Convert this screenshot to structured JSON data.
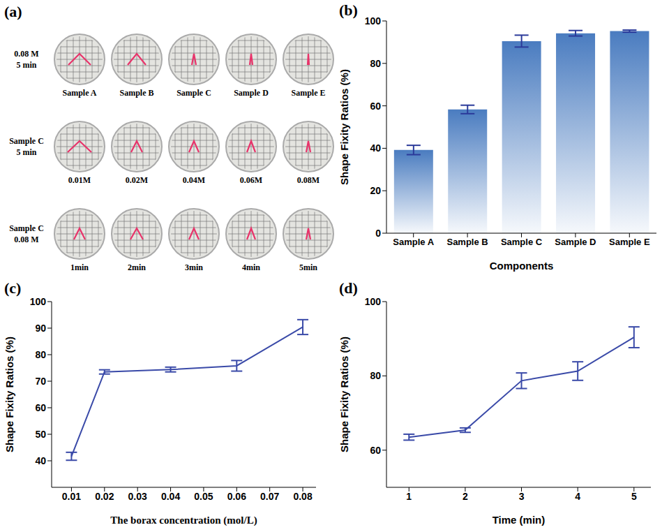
{
  "chart_data": [
    {
      "type": "photo_grid",
      "panel": "(a)",
      "rows": [
        {
          "label": [
            "0.08 M",
            "5 min"
          ],
          "items": [
            "Sample A",
            "Sample B",
            "Sample C",
            "Sample D",
            "Sample E"
          ]
        },
        {
          "label": [
            "Sample C",
            "5 min"
          ],
          "items": [
            "0.01M",
            "0.02M",
            "0.04M",
            "0.06M",
            "0.08M"
          ]
        },
        {
          "label": [
            "Sample C",
            "0.08 M"
          ],
          "items": [
            "1min",
            "2min",
            "3min",
            "4min",
            "5min"
          ]
        }
      ]
    },
    {
      "type": "bar",
      "panel": "(b)",
      "categories": [
        "Sample A",
        "Sample B",
        "Sample C",
        "Sample D",
        "Sample E"
      ],
      "values": [
        39.2,
        58.3,
        90.5,
        94.2,
        95.2
      ],
      "errors": [
        2.2,
        2.0,
        2.8,
        1.3,
        0.5
      ],
      "color": "#4a7cc0",
      "xlabel": "Components",
      "ylabel": "Shape Fixity Ratios (%)",
      "ylim": [
        0,
        100
      ],
      "yticks": [
        0,
        20,
        40,
        60,
        80,
        100
      ]
    },
    {
      "type": "line",
      "panel": "(c)",
      "x": [
        0.01,
        0.02,
        0.04,
        0.06,
        0.08
      ],
      "values": [
        41.7,
        73.5,
        74.4,
        75.8,
        90.4
      ],
      "errors": [
        1.5,
        0.8,
        0.9,
        2.0,
        2.8
      ],
      "color": "#3a4aa8",
      "marker": "none",
      "xlabel": "The borax concentration (mol/L)",
      "ylabel": "Shape Fixity Ratios (%)",
      "xlim": [
        0.004,
        0.084
      ],
      "xticks": [
        0.01,
        0.02,
        0.03,
        0.04,
        0.05,
        0.06,
        0.07,
        0.08
      ],
      "ylim": [
        30,
        100
      ],
      "yticks": [
        40,
        50,
        60,
        70,
        80,
        90,
        100
      ]
    },
    {
      "type": "line",
      "panel": "(d)",
      "x": [
        1,
        2,
        3,
        4,
        5
      ],
      "values": [
        63.5,
        65.4,
        78.7,
        81.3,
        90.4
      ],
      "errors": [
        0.8,
        0.6,
        2.1,
        2.5,
        2.8
      ],
      "color": "#3a4aa8",
      "marker": "none",
      "xlabel": "Time (min)",
      "ylabel": "Shape Fixity Ratios (%)",
      "xlim": [
        0.6,
        5.3
      ],
      "xticks": [
        1,
        2,
        3,
        4,
        5
      ],
      "ylim": [
        50,
        100
      ],
      "yticks": [
        60,
        80,
        100
      ]
    }
  ]
}
